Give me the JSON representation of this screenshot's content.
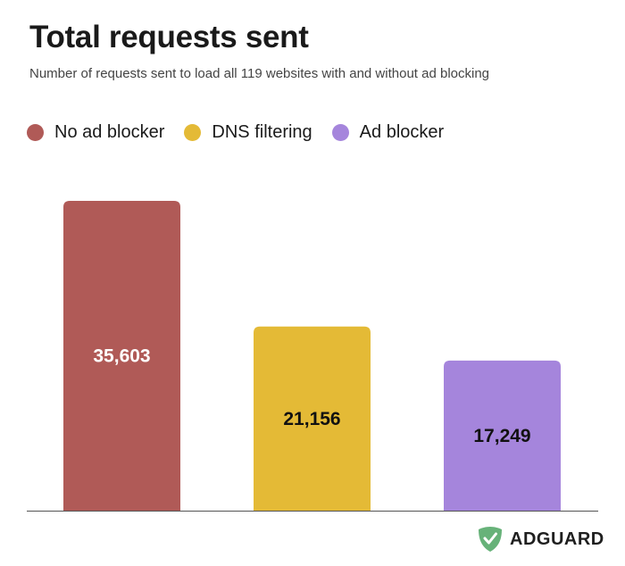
{
  "chart_data": {
    "type": "bar",
    "title": "Total requests sent",
    "subtitle": "Number of requests sent to load all 119 websites with and without ad blocking",
    "categories": [
      "No ad blocker",
      "DNS filtering",
      "Ad blocker"
    ],
    "values": [
      35603,
      21156,
      17249
    ],
    "data_labels": [
      "35,603",
      "21,156",
      "17,249"
    ],
    "colors": [
      "#b05a57",
      "#e4ba36",
      "#a585dc"
    ],
    "label_colors": [
      "#ffffff",
      "#111111",
      "#111111"
    ],
    "legend": [
      "No ad blocker",
      "DNS filtering",
      "Ad blocker"
    ],
    "legend_position": "top-left",
    "ylim": [
      0,
      35603
    ],
    "grid": false,
    "xlabel": "",
    "ylabel": ""
  },
  "brand": {
    "name": "ADGUARD",
    "color": "#67b279"
  }
}
